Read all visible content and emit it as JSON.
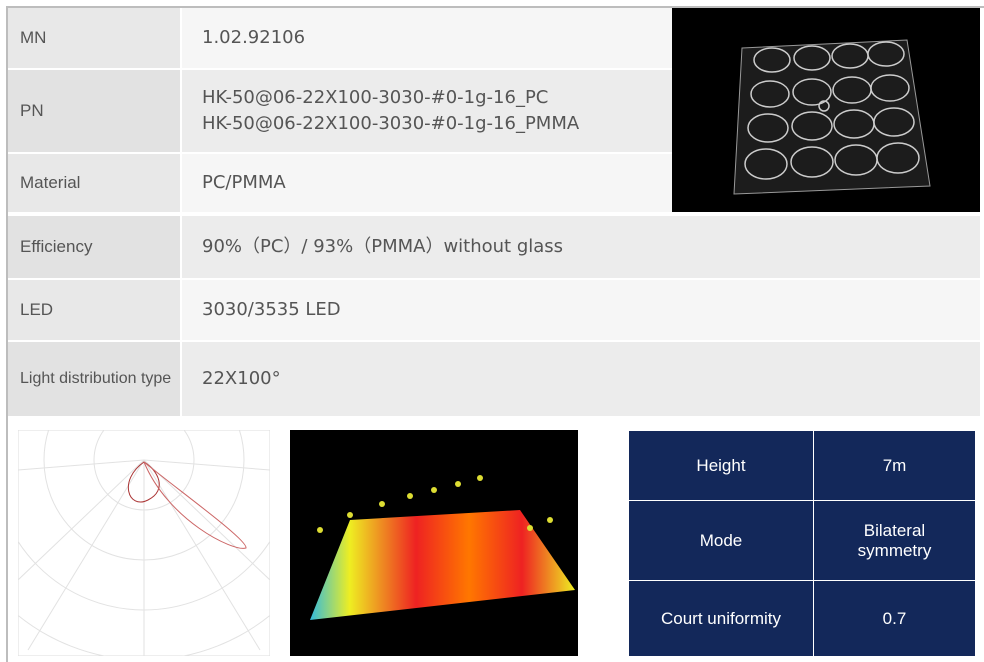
{
  "spec_table": {
    "rows": [
      {
        "label": "MN",
        "value": [
          "1.02.92106"
        ]
      },
      {
        "label": "PN",
        "value": [
          "HK-50@06-22X100-3030-#0-1g-16_PC",
          "HK-50@06-22X100-3030-#0-1g-16_PMMA"
        ]
      },
      {
        "label": "Material",
        "value": [
          "PC/PMMA"
        ]
      },
      {
        "label": "Efficiency",
        "value": [
          "90%（PC）/ 93%（PMMA）without glass"
        ]
      },
      {
        "label": "LED",
        "value": [
          "3030/3535 LED"
        ]
      },
      {
        "label": "Light distribution type",
        "value": [
          "22X100°"
        ]
      }
    ]
  },
  "result_table": {
    "rows": [
      {
        "label": "Height",
        "value": "7m"
      },
      {
        "label": "Mode",
        "value": "Bilateral symmetry"
      },
      {
        "label": "Court uniformity",
        "value": "0.7"
      }
    ]
  }
}
